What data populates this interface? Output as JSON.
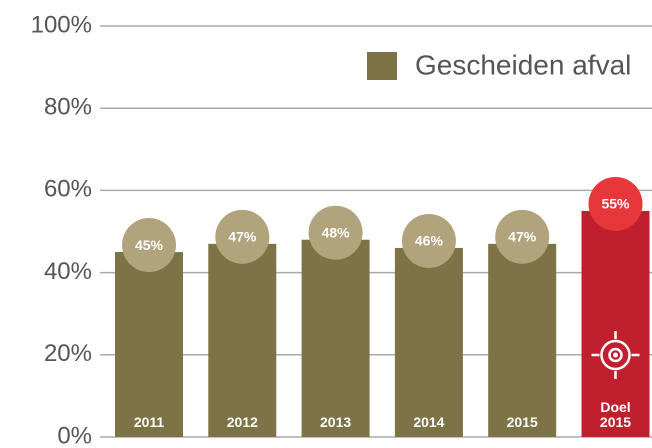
{
  "chart_data": {
    "type": "bar",
    "categories": [
      "2011",
      "2012",
      "2013",
      "2014",
      "2015",
      "Doel 2015"
    ],
    "series": [
      {
        "name": "Gescheiden afval",
        "color": "#7d7346",
        "values": [
          45,
          47,
          48,
          46,
          47,
          55
        ]
      }
    ],
    "value_labels": [
      "45%",
      "47%",
      "48%",
      "46%",
      "47%",
      "55%"
    ],
    "colors": [
      "#7d7346",
      "#7d7346",
      "#7d7346",
      "#7d7346",
      "#7d7346",
      "#c0202e"
    ],
    "label_colors": [
      "#b1a37b",
      "#b1a37b",
      "#b1a37b",
      "#b1a37b",
      "#b1a37b",
      "#e8373a"
    ],
    "ylim": [
      0,
      100
    ],
    "yticks": [
      {
        "value": 0,
        "label": "0%"
      },
      {
        "value": 20,
        "label": "20%"
      },
      {
        "value": 40,
        "label": "40%"
      },
      {
        "value": 60,
        "label": "60%"
      },
      {
        "value": 80,
        "label": "80%"
      },
      {
        "value": 100,
        "label": "100%"
      }
    ],
    "grid": true,
    "legend": "top-right"
  }
}
